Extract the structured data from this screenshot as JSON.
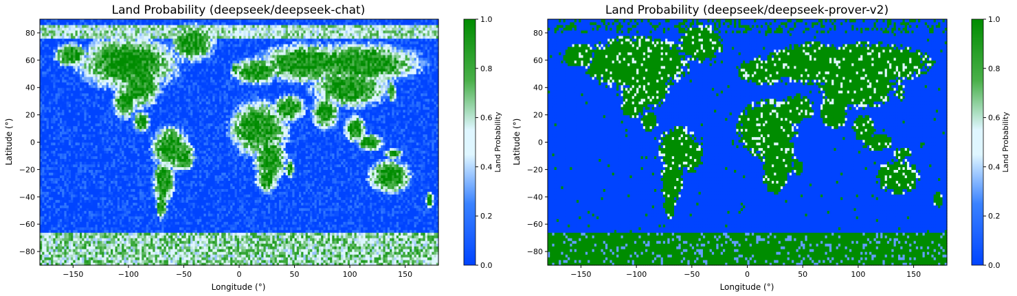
{
  "chart_data": [
    {
      "type": "heatmap",
      "title": "Land Probability (deepseek/deepseek-chat)",
      "xlabel": "Longitude (°)",
      "ylabel": "Latitude (°)",
      "xlim": [
        -180,
        180
      ],
      "ylim": [
        -90,
        90
      ],
      "x_ticks": [
        -150,
        -100,
        -50,
        0,
        50,
        100,
        150
      ],
      "y_ticks": [
        -80,
        -60,
        -40,
        -20,
        0,
        20,
        40,
        60,
        80
      ],
      "grid_resolution_deg": 2,
      "value_range": [
        0,
        1
      ],
      "model_profile": "chat",
      "colorbar": {
        "label": "Land Probability",
        "ticks": [
          0.0,
          0.2,
          0.4,
          0.6,
          0.8,
          1.0
        ],
        "tick_labels": [
          "0.0",
          "0.2",
          "0.4",
          "0.6",
          "0.8",
          "1.0"
        ]
      }
    },
    {
      "type": "heatmap",
      "title": "Land Probability (deepseek/deepseek-prover-v2)",
      "xlabel": "Longitude (°)",
      "ylabel": "Latitude (°)",
      "xlim": [
        -180,
        180
      ],
      "ylim": [
        -90,
        90
      ],
      "x_ticks": [
        -150,
        -100,
        -50,
        0,
        50,
        100,
        150
      ],
      "y_ticks": [
        -80,
        -60,
        -40,
        -20,
        0,
        20,
        40,
        60,
        80
      ],
      "grid_resolution_deg": 2,
      "value_range": [
        0,
        1
      ],
      "model_profile": "prover",
      "colorbar": {
        "label": "Land Probability",
        "ticks": [
          0.0,
          0.2,
          0.4,
          0.6,
          0.8,
          1.0
        ],
        "tick_labels": [
          "0.0",
          "0.2",
          "0.4",
          "0.6",
          "0.8",
          "1.0"
        ]
      }
    }
  ],
  "colormap": {
    "stops": [
      {
        "v": 0.0,
        "color": "#0044ff"
      },
      {
        "v": 0.25,
        "color": "#3a82ff"
      },
      {
        "v": 0.45,
        "color": "#dff6ff"
      },
      {
        "v": 0.55,
        "color": "#dff6ff"
      },
      {
        "v": 0.75,
        "color": "#4ab04a"
      },
      {
        "v": 1.0,
        "color": "#008c00"
      }
    ]
  }
}
